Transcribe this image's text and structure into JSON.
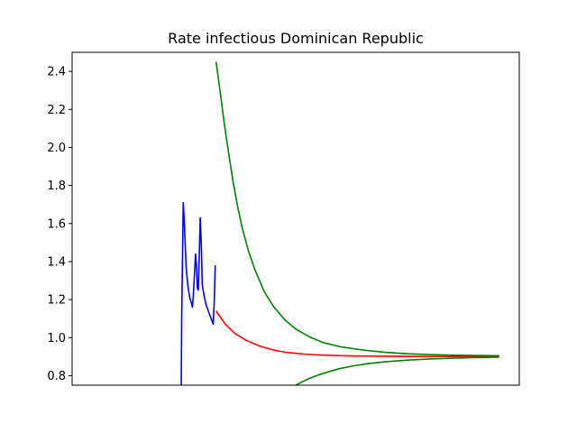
{
  "chart_data": {
    "type": "line",
    "title": "Rate infectious Dominican Republic",
    "xlabel": "",
    "ylabel": "",
    "xlim": [
      0,
      100
    ],
    "ylim": [
      0.75,
      2.5
    ],
    "x_ticks_visible": false,
    "y_ticks": [
      0.8,
      1.0,
      1.2,
      1.4,
      1.6,
      1.8,
      2.0,
      2.2,
      2.4
    ],
    "y_tick_labels": [
      "0.8",
      "1.0",
      "1.2",
      "1.4",
      "1.6",
      "1.8",
      "2.0",
      "2.2",
      "2.4"
    ],
    "grid": false,
    "legend": false,
    "series": [
      {
        "color": "#0000ff",
        "points": [
          [
            24.4,
            0.75
          ],
          [
            24.5,
            1.1
          ],
          [
            24.7,
            1.45
          ],
          [
            24.85,
            1.71
          ],
          [
            25.1,
            1.6
          ],
          [
            25.5,
            1.37
          ],
          [
            25.9,
            1.27
          ],
          [
            26.3,
            1.21
          ],
          [
            26.7,
            1.18
          ],
          [
            26.9,
            1.16
          ],
          [
            27.1,
            1.22
          ],
          [
            27.4,
            1.35
          ],
          [
            27.6,
            1.44
          ],
          [
            27.8,
            1.38
          ],
          [
            28.0,
            1.26
          ],
          [
            28.2,
            1.25
          ],
          [
            28.45,
            1.45
          ],
          [
            28.65,
            1.63
          ],
          [
            28.9,
            1.48
          ],
          [
            29.1,
            1.28
          ],
          [
            29.5,
            1.22
          ],
          [
            30.0,
            1.17
          ],
          [
            30.6,
            1.13
          ],
          [
            31.1,
            1.1
          ],
          [
            31.55,
            1.07
          ],
          [
            31.8,
            1.2
          ],
          [
            32.0,
            1.38
          ]
        ]
      },
      {
        "color": "#ff0000",
        "points": [
          [
            32.2,
            1.14
          ],
          [
            34.3,
            1.07
          ],
          [
            36.5,
            1.02
          ],
          [
            39.0,
            0.985
          ],
          [
            42.0,
            0.955
          ],
          [
            45.0,
            0.935
          ],
          [
            48.0,
            0.922
          ],
          [
            52.0,
            0.913
          ],
          [
            56.0,
            0.908
          ],
          [
            62.0,
            0.904
          ],
          [
            70.0,
            0.902
          ],
          [
            80.0,
            0.901
          ],
          [
            90.0,
            0.901
          ],
          [
            95.5,
            0.901
          ]
        ]
      },
      {
        "color": "#008000",
        "points": [
          [
            32.2,
            2.45
          ],
          [
            33.0,
            2.31
          ],
          [
            34.0,
            2.13
          ],
          [
            35.0,
            1.97
          ],
          [
            36.0,
            1.82
          ],
          [
            37.0,
            1.69
          ],
          [
            38.0,
            1.58
          ],
          [
            39.5,
            1.45
          ],
          [
            41.0,
            1.35
          ],
          [
            43.0,
            1.24
          ],
          [
            45.0,
            1.165
          ],
          [
            47.5,
            1.095
          ],
          [
            50.0,
            1.045
          ],
          [
            53.0,
            1.005
          ],
          [
            56.0,
            0.975
          ],
          [
            60.0,
            0.952
          ],
          [
            65.0,
            0.935
          ],
          [
            70.0,
            0.923
          ],
          [
            75.0,
            0.915
          ],
          [
            80.0,
            0.911
          ],
          [
            85.0,
            0.908
          ],
          [
            90.0,
            0.906
          ],
          [
            95.5,
            0.905
          ]
        ]
      },
      {
        "color": "#008000",
        "points": [
          [
            50.0,
            0.75
          ],
          [
            51.5,
            0.768
          ],
          [
            53.0,
            0.785
          ],
          [
            55.0,
            0.803
          ],
          [
            57.5,
            0.822
          ],
          [
            60.0,
            0.838
          ],
          [
            63.0,
            0.852
          ],
          [
            66.0,
            0.863
          ],
          [
            70.0,
            0.873
          ],
          [
            75.0,
            0.882
          ],
          [
            80.0,
            0.888
          ],
          [
            85.0,
            0.892
          ],
          [
            90.0,
            0.895
          ],
          [
            95.5,
            0.897
          ]
        ]
      }
    ]
  }
}
